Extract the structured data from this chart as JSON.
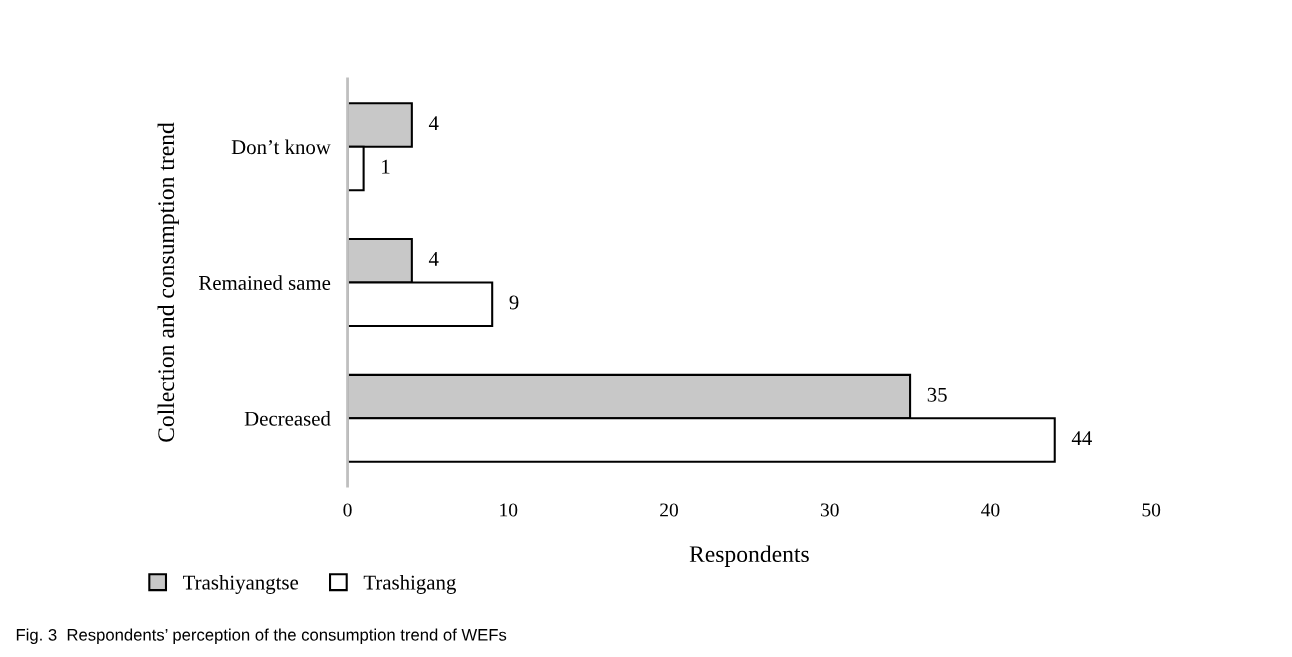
{
  "chart_data": {
    "type": "bar",
    "orientation": "horizontal",
    "categories": [
      "Don’t know",
      "Remained same",
      "Decreased"
    ],
    "series": [
      {
        "name": "Trashiyangtse",
        "color": "#c8c8c8",
        "values": [
          4,
          4,
          35
        ]
      },
      {
        "name": "Trashigang",
        "color": "#ffffff",
        "values": [
          1,
          9,
          44
        ]
      }
    ],
    "xlabel": "Respondents",
    "ylabel": "Collection and consumption trend",
    "xlim": [
      0,
      50
    ],
    "xticks": [
      0,
      10,
      20,
      30,
      40,
      50
    ],
    "grid": false,
    "legend": "bottom left",
    "data_labels": true,
    "annotations": [
      "Fig. 3  Respondents’ perception of the consumption trend of WEFs"
    ]
  }
}
